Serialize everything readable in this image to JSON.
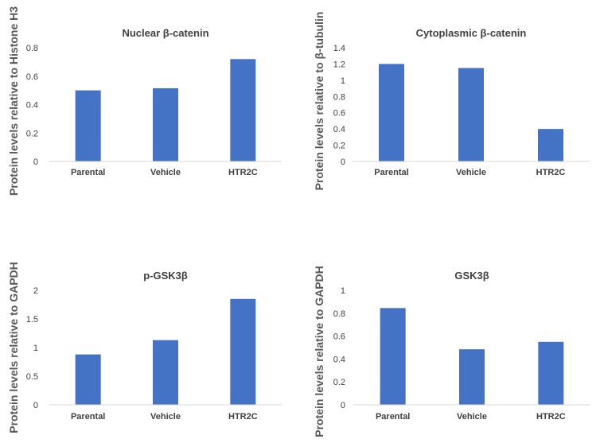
{
  "chart_data": [
    {
      "type": "bar",
      "title": "Nuclear β-catenin",
      "ylabel": "Protein levels relative to Histone H3",
      "xlabel": "",
      "categories": [
        "Parental",
        "Vehicle",
        "HTR2C"
      ],
      "values": [
        0.5,
        0.515,
        0.72
      ],
      "ylim": [
        0,
        0.8
      ],
      "yticks": [
        0,
        0.2,
        0.4,
        0.6,
        0.8
      ],
      "ytick_labels": [
        "0",
        "0.2",
        "0.4",
        "0.6",
        "0.8"
      ],
      "grid": false,
      "legend": "none",
      "bar_color": "#4472C4"
    },
    {
      "type": "bar",
      "title": "Cytoplasmic β-catenin",
      "ylabel": "Protein levels relative to β-tubulin",
      "xlabel": "",
      "categories": [
        "Parental",
        "Vehicle",
        "HTR2C"
      ],
      "values": [
        1.2,
        1.15,
        0.4
      ],
      "ylim": [
        0,
        1.4
      ],
      "yticks": [
        0,
        0.2,
        0.4,
        0.6,
        0.8,
        1,
        1.2,
        1.4
      ],
      "ytick_labels": [
        "0",
        "0.2",
        "0.4",
        "0.6",
        "0.8",
        "1",
        "1.2",
        "1.4"
      ],
      "grid": false,
      "legend": "none",
      "bar_color": "#4472C4"
    },
    {
      "type": "bar",
      "title": "p-GSK3β",
      "ylabel": "Protein levels relative to GAPDH",
      "xlabel": "",
      "categories": [
        "Parental",
        "Vehicle",
        "HTR2C"
      ],
      "values": [
        0.88,
        1.13,
        1.85
      ],
      "ylim": [
        0,
        2
      ],
      "yticks": [
        0,
        0.5,
        1,
        1.5,
        2
      ],
      "ytick_labels": [
        "0",
        "0.5",
        "1",
        "1.5",
        "2"
      ],
      "grid": false,
      "legend": "none",
      "bar_color": "#4472C4"
    },
    {
      "type": "bar",
      "title": "GSK3β",
      "ylabel": "Protein levels relative to GAPDH",
      "xlabel": "",
      "categories": [
        "Parental",
        "Vehicle",
        "HTR2C"
      ],
      "values": [
        0.845,
        0.485,
        0.55
      ],
      "ylim": [
        0,
        1
      ],
      "yticks": [
        0,
        0.2,
        0.4,
        0.6,
        0.8,
        1
      ],
      "ytick_labels": [
        "0",
        "0.2",
        "0.4",
        "0.6",
        "0.8",
        "1"
      ],
      "grid": false,
      "legend": "none",
      "bar_color": "#4472C4"
    }
  ]
}
